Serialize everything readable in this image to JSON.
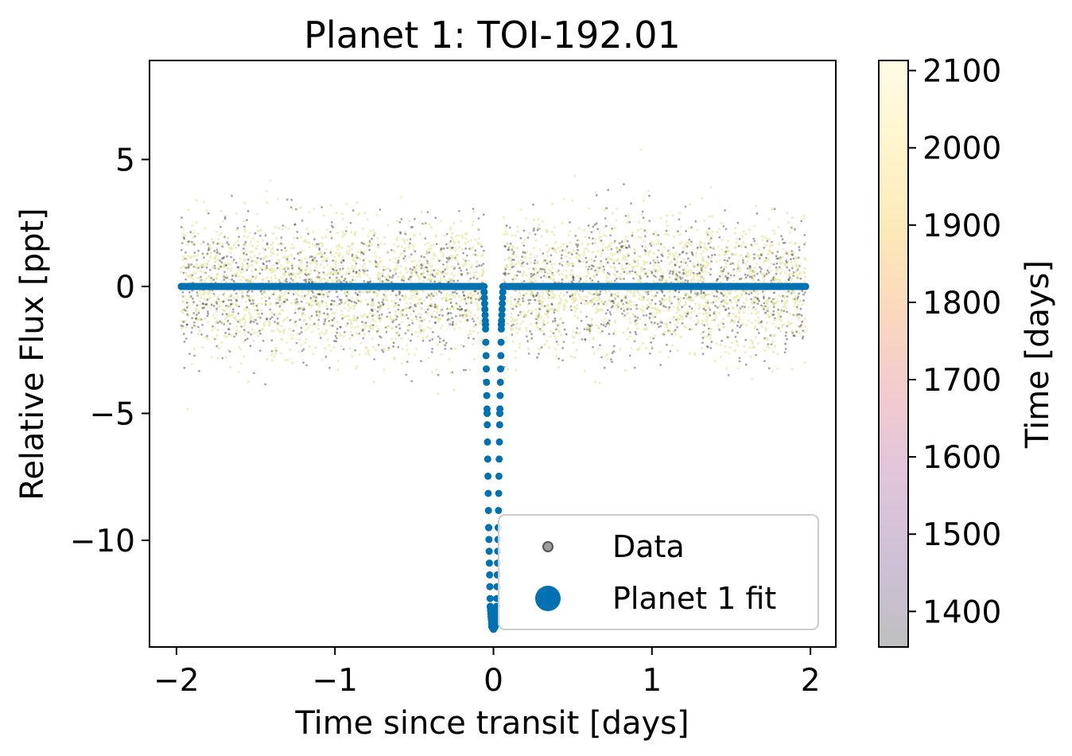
{
  "chart_data": {
    "type": "scatter",
    "title": "Planet 1: TOI-192.01",
    "xlabel": "Time since transit [days]",
    "ylabel": "Relative Flux [ppt]",
    "xlim": [
      -2.17,
      2.16
    ],
    "ylim": [
      -14.2,
      8.9
    ],
    "x_ticks": [
      -2,
      -1,
      0,
      1,
      2
    ],
    "x_tick_labels": [
      "−2",
      "−1",
      "0",
      "1",
      "2"
    ],
    "y_ticks": [
      5,
      0,
      -5,
      -10
    ],
    "y_tick_labels": [
      "5",
      "0",
      "−5",
      "−10"
    ],
    "grid": false,
    "legend_placement": "lower-right",
    "series": [
      {
        "name": "Data",
        "marker": "point",
        "color_by": "time",
        "x_range": [
          -1.97,
          1.97
        ],
        "flux_scatter_ppt": 1.3,
        "transit_gap": [
          -0.06,
          0.06
        ],
        "color": "#555555"
      },
      {
        "name": "Planet 1 fit",
        "marker": "circle",
        "color": "#0072b2",
        "x": [
          -1.97,
          -0.06,
          -0.05,
          -0.04,
          -0.03,
          -0.02,
          -0.01,
          0.0,
          0.01,
          0.02,
          0.03,
          0.04,
          0.05,
          0.06,
          1.97
        ],
        "y": [
          0,
          0,
          -1.5,
          -5.0,
          -9.5,
          -12.6,
          -13.4,
          -13.5,
          -13.4,
          -12.6,
          -9.5,
          -5.0,
          -1.5,
          0,
          0
        ]
      }
    ],
    "colorbar": {
      "label": "Time [days]",
      "range": [
        1354,
        2113
      ],
      "ticks": [
        1400,
        1500,
        1600,
        1700,
        1800,
        1900,
        2000,
        2100
      ],
      "tick_labels": [
        "1400",
        "1500",
        "1600",
        "1700",
        "1800",
        "1900",
        "2000",
        "2100"
      ],
      "colors": [
        "#bfbfbf",
        "#cdc0d6",
        "#e0c5dc",
        "#f2cbcf",
        "#fad8bd",
        "#fde9b8",
        "#fff6cd",
        "#fffce6"
      ]
    }
  }
}
